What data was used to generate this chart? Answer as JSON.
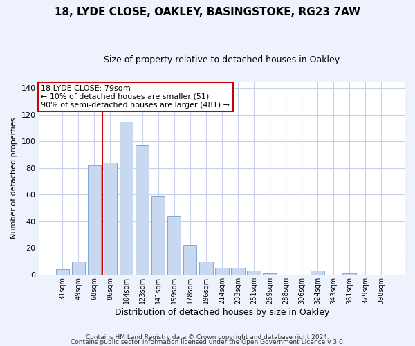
{
  "title1": "18, LYDE CLOSE, OAKLEY, BASINGSTOKE, RG23 7AW",
  "title2": "Size of property relative to detached houses in Oakley",
  "xlabel": "Distribution of detached houses by size in Oakley",
  "ylabel": "Number of detached properties",
  "bar_labels": [
    "31sqm",
    "49sqm",
    "68sqm",
    "86sqm",
    "104sqm",
    "123sqm",
    "141sqm",
    "159sqm",
    "178sqm",
    "196sqm",
    "214sqm",
    "233sqm",
    "251sqm",
    "269sqm",
    "288sqm",
    "306sqm",
    "324sqm",
    "343sqm",
    "361sqm",
    "379sqm",
    "398sqm"
  ],
  "bar_values": [
    4,
    10,
    82,
    84,
    115,
    97,
    59,
    44,
    22,
    10,
    5,
    5,
    3,
    1,
    0,
    0,
    3,
    0,
    1,
    0,
    0
  ],
  "bar_color": "#c8d8f0",
  "bar_edge_color": "#7aaad4",
  "ylim": [
    0,
    145
  ],
  "yticks": [
    0,
    20,
    40,
    60,
    80,
    100,
    120,
    140
  ],
  "annotation_title": "18 LYDE CLOSE: 79sqm",
  "annotation_line1": "← 10% of detached houses are smaller (51)",
  "annotation_line2": "90% of semi-detached houses are larger (481) →",
  "footer1": "Contains HM Land Registry data © Crown copyright and database right 2024.",
  "footer2": "Contains public sector information licensed under the Open Government Licence v 3.0.",
  "background_color": "#edf2fc",
  "plot_bg_color": "#ffffff",
  "vline_color": "#cc0000",
  "annotation_box_color": "#ffffff",
  "annotation_border_color": "#cc0000",
  "grid_color": "#c8d0e8",
  "title1_fontsize": 11,
  "title2_fontsize": 9,
  "xlabel_fontsize": 9,
  "ylabel_fontsize": 8,
  "tick_fontsize": 8,
  "xtick_fontsize": 7,
  "footer_fontsize": 6.5,
  "vline_x_index": 2.5
}
